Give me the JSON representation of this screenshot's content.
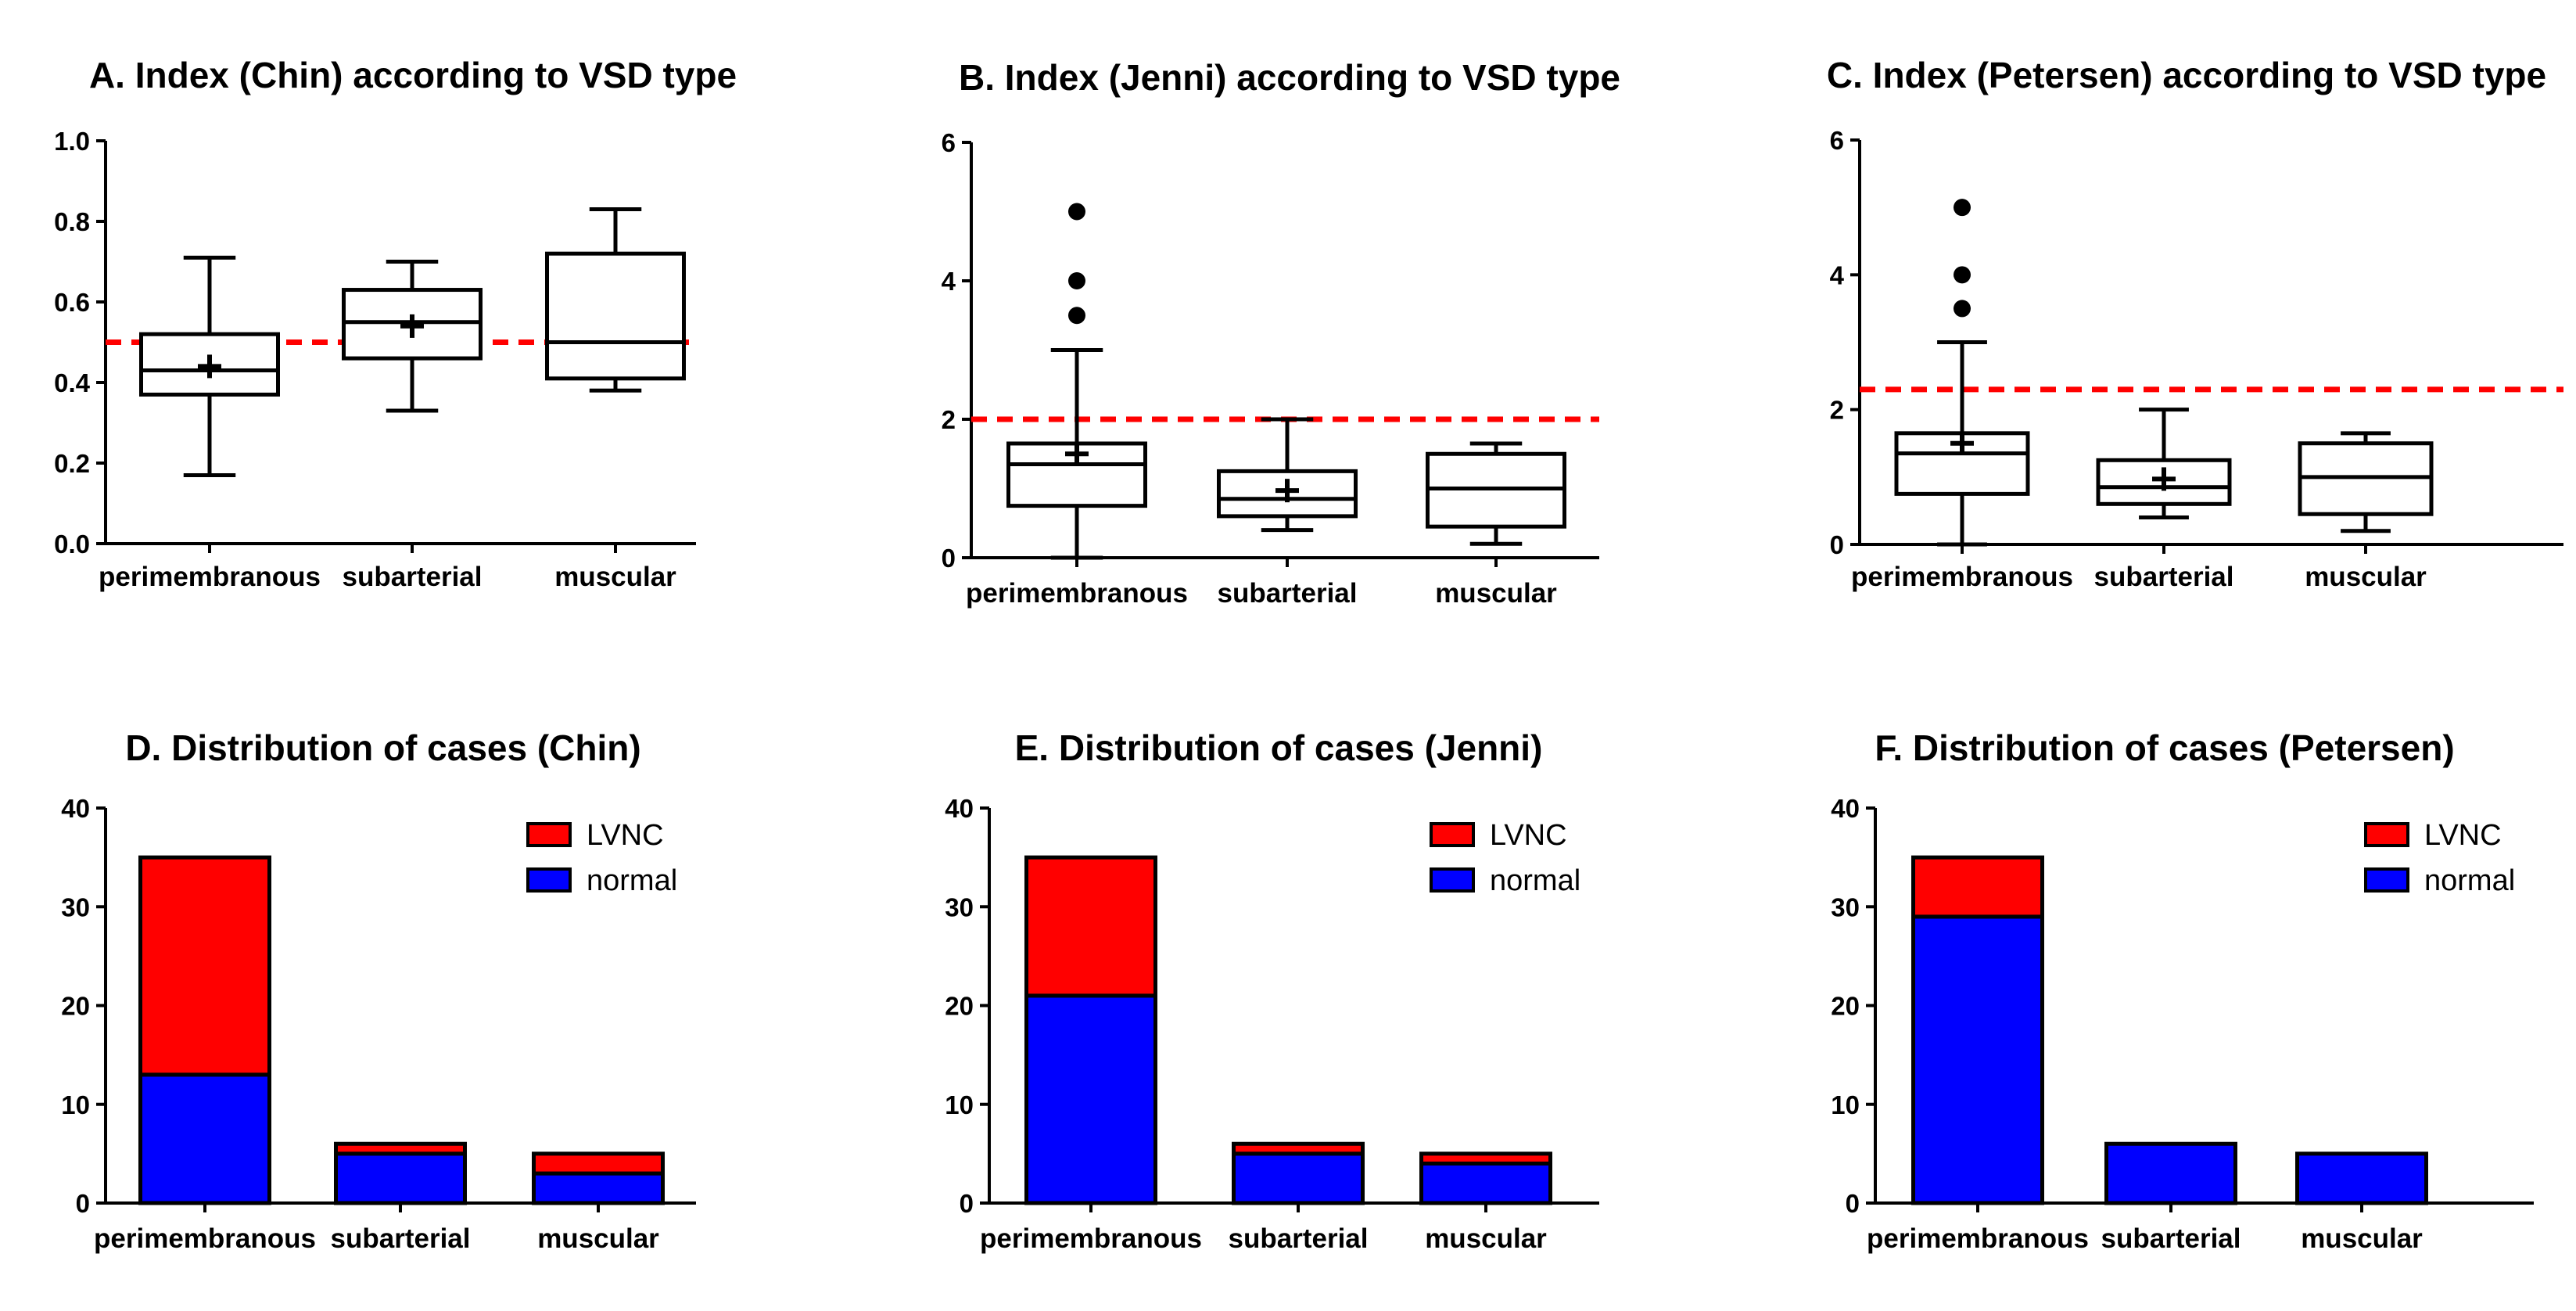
{
  "figure": {
    "colors": {
      "lvnc": "#ff0000",
      "normal": "#0000ff",
      "cutoff": "#ff0000",
      "ink": "#000000"
    }
  },
  "chart_data": [
    {
      "id": "A",
      "type": "box",
      "title": "A. Index (Chin) according to VSD type",
      "categories": [
        "perimembranous",
        "subarterial",
        "muscular"
      ],
      "ylim": [
        0,
        1.0
      ],
      "yticks": [
        "0.0",
        "0.2",
        "0.4",
        "0.6",
        "0.8",
        "1.0"
      ],
      "ytick_values": [
        0,
        0.2,
        0.4,
        0.6,
        0.8,
        1.0
      ],
      "cutoff": 0.5,
      "boxes": [
        {
          "min": 0.17,
          "q1": 0.37,
          "median": 0.43,
          "q3": 0.52,
          "max": 0.71,
          "mean": 0.44,
          "outliers": []
        },
        {
          "min": 0.33,
          "q1": 0.46,
          "median": 0.55,
          "q3": 0.63,
          "max": 0.7,
          "mean": 0.54,
          "outliers": []
        },
        {
          "min": 0.38,
          "q1": 0.41,
          "median": 0.5,
          "q3": 0.72,
          "max": 0.83,
          "mean": null,
          "outliers": []
        }
      ]
    },
    {
      "id": "B",
      "type": "box",
      "title": "B. Index (Jenni) according to VSD type",
      "categories": [
        "perimembranous",
        "subarterial",
        "muscular"
      ],
      "ylim": [
        0,
        6
      ],
      "yticks": [
        "0",
        "2",
        "4",
        "6"
      ],
      "ytick_values": [
        0,
        2,
        4,
        6
      ],
      "cutoff": 2.0,
      "boxes": [
        {
          "min": 0.0,
          "q1": 0.75,
          "median": 1.35,
          "q3": 1.65,
          "max": 3.0,
          "mean": 1.5,
          "outliers": [
            3.5,
            4.0,
            5.0
          ]
        },
        {
          "min": 0.4,
          "q1": 0.6,
          "median": 0.85,
          "q3": 1.25,
          "max": 2.0,
          "mean": 0.97,
          "outliers": []
        },
        {
          "min": 0.2,
          "q1": 0.45,
          "median": 1.0,
          "q3": 1.5,
          "max": 1.65,
          "mean": null,
          "outliers": []
        }
      ]
    },
    {
      "id": "C",
      "type": "box",
      "title": "C. Index (Petersen) according to VSD type",
      "categories": [
        "perimembranous",
        "subarterial",
        "muscular"
      ],
      "ylim": [
        0,
        6
      ],
      "yticks": [
        "0",
        "2",
        "4",
        "6"
      ],
      "ytick_values": [
        0,
        2,
        4,
        6
      ],
      "cutoff": 2.3,
      "boxes": [
        {
          "min": 0.0,
          "q1": 0.75,
          "median": 1.35,
          "q3": 1.65,
          "max": 3.0,
          "mean": 1.5,
          "outliers": [
            3.5,
            4.0,
            5.0
          ]
        },
        {
          "min": 0.4,
          "q1": 0.6,
          "median": 0.85,
          "q3": 1.25,
          "max": 2.0,
          "mean": 0.97,
          "outliers": []
        },
        {
          "min": 0.2,
          "q1": 0.45,
          "median": 1.0,
          "q3": 1.5,
          "max": 1.65,
          "mean": null,
          "outliers": []
        }
      ]
    },
    {
      "id": "D",
      "type": "bar",
      "stacked": true,
      "title": "D. Distribution of cases (Chin)",
      "categories": [
        "perimembranous",
        "subarterial",
        "muscular"
      ],
      "ylim": [
        0,
        40
      ],
      "yticks": [
        "0",
        "10",
        "20",
        "30",
        "40"
      ],
      "ytick_values": [
        0,
        10,
        20,
        30,
        40
      ],
      "legend": [
        "LVNC",
        "normal"
      ],
      "legend_position": "top-right",
      "series": [
        {
          "name": "normal",
          "values": [
            13,
            5,
            3
          ]
        },
        {
          "name": "LVNC",
          "values": [
            22,
            1,
            2
          ]
        }
      ]
    },
    {
      "id": "E",
      "type": "bar",
      "stacked": true,
      "title": "E. Distribution of cases (Jenni)",
      "categories": [
        "perimembranous",
        "subarterial",
        "muscular"
      ],
      "ylim": [
        0,
        40
      ],
      "yticks": [
        "0",
        "10",
        "20",
        "30",
        "40"
      ],
      "ytick_values": [
        0,
        10,
        20,
        30,
        40
      ],
      "legend": [
        "LVNC",
        "normal"
      ],
      "legend_position": "top-right",
      "series": [
        {
          "name": "normal",
          "values": [
            21,
            5,
            4
          ]
        },
        {
          "name": "LVNC",
          "values": [
            14,
            1,
            1
          ]
        }
      ]
    },
    {
      "id": "F",
      "type": "bar",
      "stacked": true,
      "title": "F. Distribution of cases (Petersen)",
      "categories": [
        "perimembranous",
        "subarterial",
        "muscular"
      ],
      "ylim": [
        0,
        40
      ],
      "yticks": [
        "0",
        "10",
        "20",
        "30",
        "40"
      ],
      "ytick_values": [
        0,
        10,
        20,
        30,
        40
      ],
      "legend": [
        "LVNC",
        "normal"
      ],
      "legend_position": "top-right",
      "series": [
        {
          "name": "normal",
          "values": [
            29,
            6,
            5
          ]
        },
        {
          "name": "LVNC",
          "values": [
            6,
            0,
            0
          ]
        }
      ]
    }
  ]
}
